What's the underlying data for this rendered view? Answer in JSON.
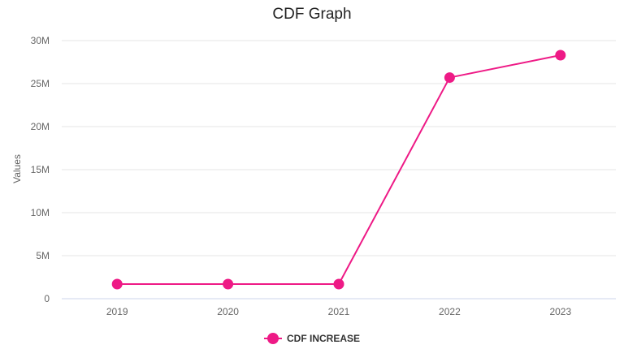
{
  "chart_data": {
    "type": "line",
    "title": "CDF Graph",
    "xlabel": "",
    "ylabel": "Values",
    "categories": [
      "2019",
      "2020",
      "2021",
      "2022",
      "2023"
    ],
    "ylim": [
      0,
      30000000
    ],
    "yticks": [
      0,
      5000000,
      10000000,
      15000000,
      20000000,
      25000000,
      30000000
    ],
    "ytick_labels": [
      "0",
      "5M",
      "10M",
      "15M",
      "20M",
      "25M",
      "30M"
    ],
    "grid": true,
    "legend_position": "bottom",
    "series": [
      {
        "name": "CDF INCREASE",
        "color": "#ee1a86",
        "values": [
          1700000,
          1700000,
          1700000,
          25700000,
          28300000
        ]
      }
    ]
  }
}
